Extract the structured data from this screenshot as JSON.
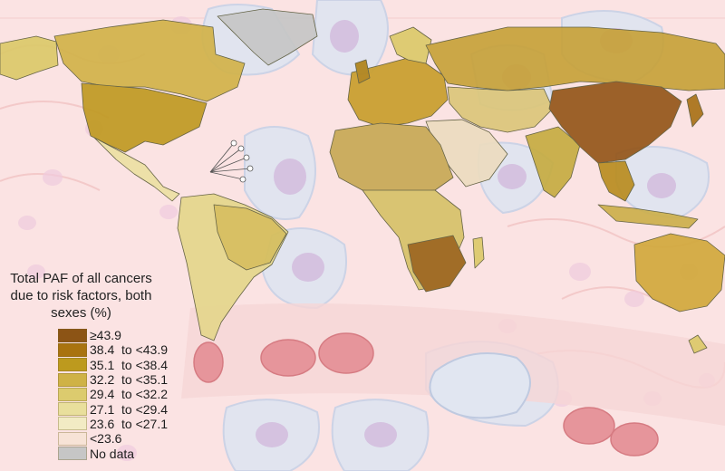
{
  "legend": {
    "title_lines": [
      "Total PAF of all cancers",
      "due to risk factors, both",
      "sexes (%)"
    ],
    "items": [
      {
        "label": "≥43.9",
        "color": "#8c5415"
      },
      {
        "label": "38.4  to <43.9",
        "color": "#a9730f"
      },
      {
        "label": "35.1  to <38.4",
        "color": "#bd9a1e"
      },
      {
        "label": "32.2  to <35.1",
        "color": "#cfb246"
      },
      {
        "label": "29.4  to <32.2",
        "color": "#dccb6e"
      },
      {
        "label": "27.1  to <29.4",
        "color": "#e9df9c"
      },
      {
        "label": "23.6  to <27.1",
        "color": "#f2ebc4"
      },
      {
        "label": "<23.6",
        "color": "#f7e3d6"
      },
      {
        "label": "No data",
        "color": "#c6c6c6"
      }
    ]
  },
  "map_colors": {
    "background": "#fbe6e6",
    "cell_blue": "#dfe6f2",
    "cell_nucleus": "#cdb5dc",
    "blood_cell": "#e78f95",
    "ocean_stroke": "#555555"
  }
}
